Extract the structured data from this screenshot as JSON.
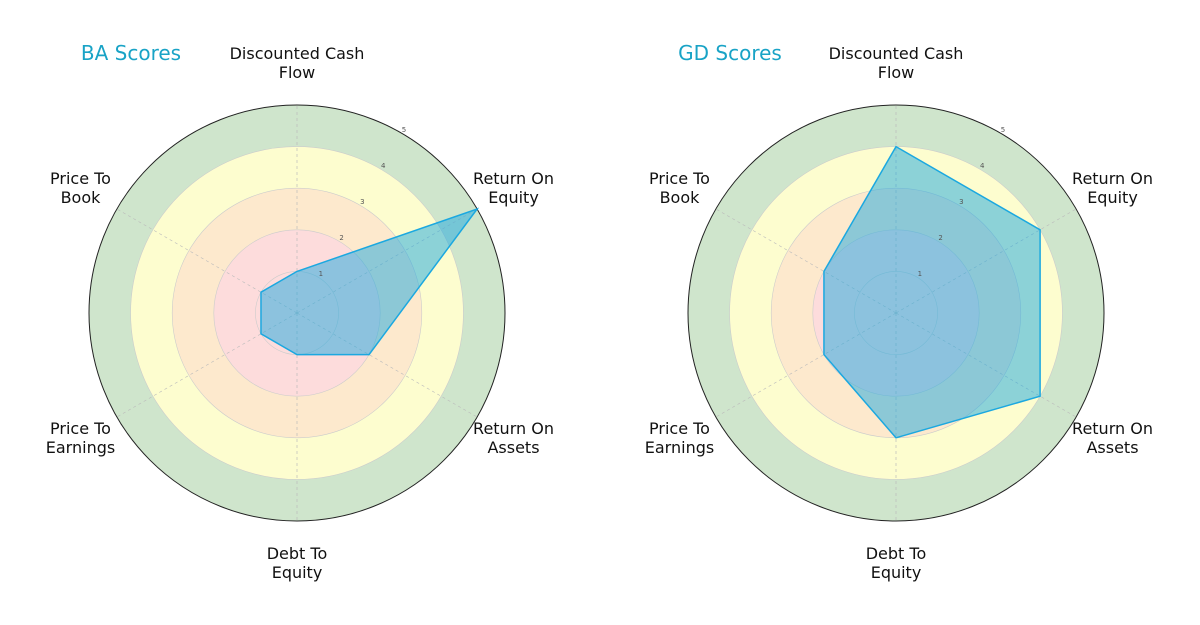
{
  "chart_data": [
    {
      "type": "radar",
      "title": "BA Scores",
      "categories": [
        "Discounted Cash\nFlow",
        "Return On\nEquity",
        "Return On\nAssets",
        "Debt To\nEquity",
        "Price To\nEarnings",
        "Price To\nBook"
      ],
      "values": [
        1,
        5,
        2,
        1,
        1,
        1
      ],
      "color": "#1ba8e0",
      "rlim": [
        0,
        5
      ],
      "rticks": [
        1,
        2,
        3,
        4,
        5
      ]
    },
    {
      "type": "radar",
      "title": "GD Scores",
      "categories": [
        "Discounted Cash\nFlow",
        "Return On\nEquity",
        "Return On\nAssets",
        "Debt To\nEquity",
        "Price To\nEarnings",
        "Price To\nBook"
      ],
      "values": [
        4,
        4,
        4,
        3,
        2,
        2
      ],
      "color": "#1ba8e0",
      "rlim": [
        0,
        5
      ],
      "rticks": [
        1,
        2,
        3,
        4,
        5
      ]
    }
  ]
}
